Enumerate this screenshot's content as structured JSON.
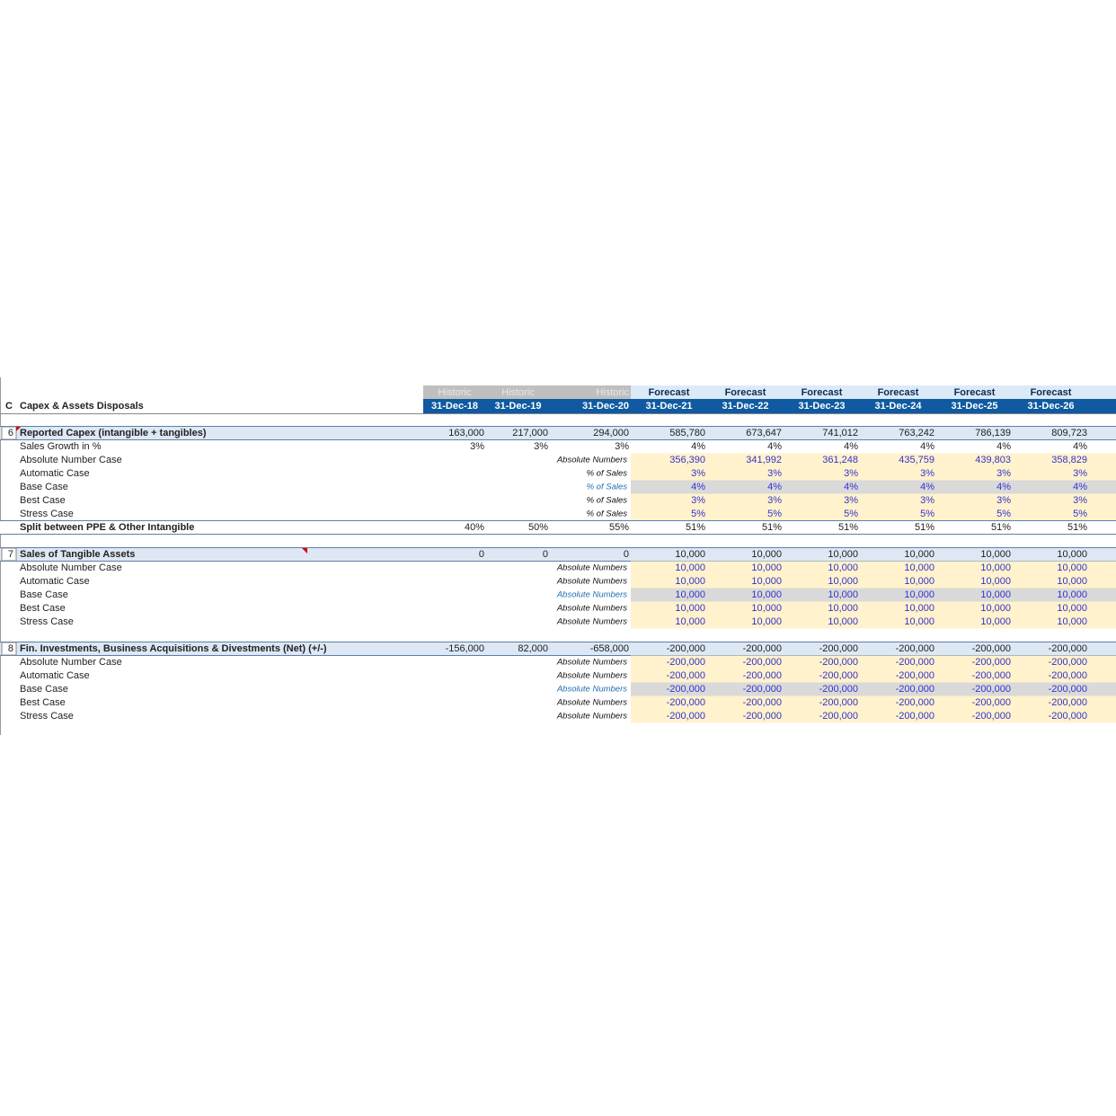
{
  "section": {
    "letter": "C",
    "title": "Capex & Assets Disposals"
  },
  "columns": [
    {
      "phase": "Historic",
      "date": "31-Dec-18"
    },
    {
      "phase": "Historic",
      "date": "31-Dec-19"
    },
    {
      "phase": "Historic",
      "date": "31-Dec-20"
    },
    {
      "phase": "Forecast",
      "date": "31-Dec-21"
    },
    {
      "phase": "Forecast",
      "date": "31-Dec-22"
    },
    {
      "phase": "Forecast",
      "date": "31-Dec-23"
    },
    {
      "phase": "Forecast",
      "date": "31-Dec-24"
    },
    {
      "phase": "Forecast",
      "date": "31-Dec-25"
    },
    {
      "phase": "Forecast",
      "date": "31-Dec-26"
    }
  ],
  "blocks": [
    {
      "number": "6",
      "rows": [
        {
          "label": "Reported Capex (intangible + tangibles)",
          "unit": null,
          "values": [
            "163,000",
            "217,000",
            "294,000",
            "585,780",
            "673,647",
            "741,012",
            "763,242",
            "786,139",
            "809,723"
          ]
        },
        {
          "label": "Sales Growth in %",
          "unit": null,
          "values": [
            "3%",
            "3%",
            "3%",
            "4%",
            "4%",
            "4%",
            "4%",
            "4%",
            "4%"
          ]
        },
        {
          "label": "Absolute Number Case",
          "unit": "Absolute Numbers",
          "values": [
            null,
            null,
            null,
            "356,390",
            "341,992",
            "361,248",
            "435,759",
            "439,803",
            "358,829"
          ]
        },
        {
          "label": "Automatic Case",
          "unit": "% of Sales",
          "values": [
            null,
            null,
            null,
            "3%",
            "3%",
            "3%",
            "3%",
            "3%",
            "3%"
          ]
        },
        {
          "label": "Base Case",
          "unit": "% of Sales",
          "values": [
            null,
            null,
            null,
            "4%",
            "4%",
            "4%",
            "4%",
            "4%",
            "4%"
          ]
        },
        {
          "label": "Best Case",
          "unit": "% of Sales",
          "values": [
            null,
            null,
            null,
            "3%",
            "3%",
            "3%",
            "3%",
            "3%",
            "3%"
          ]
        },
        {
          "label": "Stress Case",
          "unit": "% of Sales",
          "values": [
            null,
            null,
            null,
            "5%",
            "5%",
            "5%",
            "5%",
            "5%",
            "5%"
          ]
        },
        {
          "label": "Split between PPE & Other Intangible",
          "unit": null,
          "values": [
            "40%",
            "50%",
            "55%",
            "51%",
            "51%",
            "51%",
            "51%",
            "51%",
            "51%"
          ]
        }
      ]
    },
    {
      "number": "7",
      "rows": [
        {
          "label": "Sales of Tangible Assets",
          "unit": null,
          "values": [
            "0",
            "0",
            "0",
            "10,000",
            "10,000",
            "10,000",
            "10,000",
            "10,000",
            "10,000"
          ]
        },
        {
          "label": "Absolute Number Case",
          "unit": "Absolute Numbers",
          "values": [
            null,
            null,
            null,
            "10,000",
            "10,000",
            "10,000",
            "10,000",
            "10,000",
            "10,000"
          ]
        },
        {
          "label": "Automatic Case",
          "unit": "Absolute Numbers",
          "values": [
            null,
            null,
            null,
            "10,000",
            "10,000",
            "10,000",
            "10,000",
            "10,000",
            "10,000"
          ]
        },
        {
          "label": "Base Case",
          "unit": "Absolute Numbers",
          "values": [
            null,
            null,
            null,
            "10,000",
            "10,000",
            "10,000",
            "10,000",
            "10,000",
            "10,000"
          ]
        },
        {
          "label": "Best Case",
          "unit": "Absolute Numbers",
          "values": [
            null,
            null,
            null,
            "10,000",
            "10,000",
            "10,000",
            "10,000",
            "10,000",
            "10,000"
          ]
        },
        {
          "label": "Stress Case",
          "unit": "Absolute Numbers",
          "values": [
            null,
            null,
            null,
            "10,000",
            "10,000",
            "10,000",
            "10,000",
            "10,000",
            "10,000"
          ]
        }
      ]
    },
    {
      "number": "8",
      "rows": [
        {
          "label": "Fin. Investments, Business Acquisitions & Divestments (Net) (+/-)",
          "unit": null,
          "values": [
            "-156,000",
            "82,000",
            "-658,000",
            "-200,000",
            "-200,000",
            "-200,000",
            "-200,000",
            "-200,000",
            "-200,000"
          ]
        },
        {
          "label": "Absolute Number Case",
          "unit": "Absolute Numbers",
          "values": [
            null,
            null,
            null,
            "-200,000",
            "-200,000",
            "-200,000",
            "-200,000",
            "-200,000",
            "-200,000"
          ]
        },
        {
          "label": "Automatic Case",
          "unit": "Absolute Numbers",
          "values": [
            null,
            null,
            null,
            "-200,000",
            "-200,000",
            "-200,000",
            "-200,000",
            "-200,000",
            "-200,000"
          ]
        },
        {
          "label": "Base Case",
          "unit": "Absolute Numbers",
          "values": [
            null,
            null,
            null,
            "-200,000",
            "-200,000",
            "-200,000",
            "-200,000",
            "-200,000",
            "-200,000"
          ]
        },
        {
          "label": "Best Case",
          "unit": "Absolute Numbers",
          "values": [
            null,
            null,
            null,
            "-200,000",
            "-200,000",
            "-200,000",
            "-200,000",
            "-200,000",
            "-200,000"
          ]
        },
        {
          "label": "Stress Case",
          "unit": "Absolute Numbers",
          "values": [
            null,
            null,
            null,
            "-200,000",
            "-200,000",
            "-200,000",
            "-200,000",
            "-200,000",
            "-200,000"
          ]
        }
      ]
    }
  ]
}
